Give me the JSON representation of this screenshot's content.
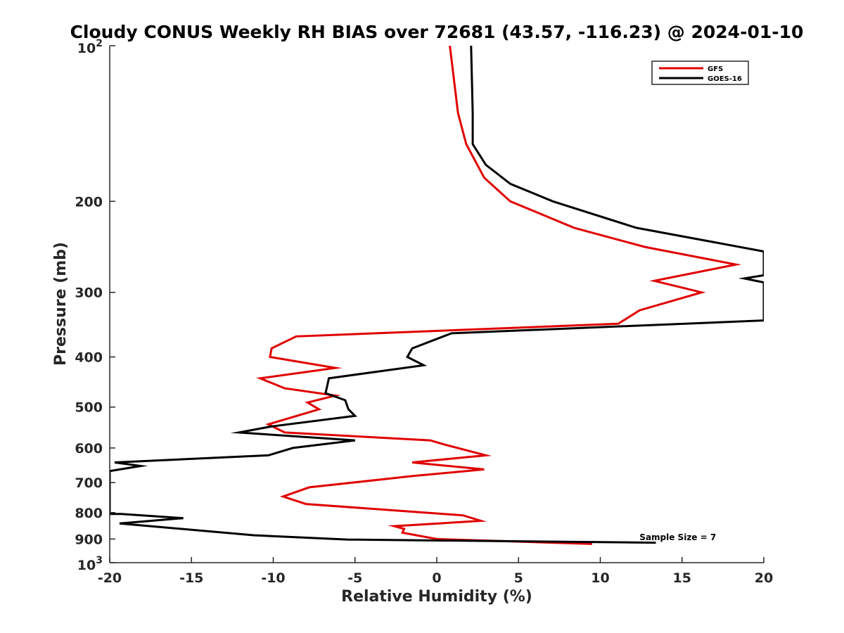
{
  "chart_data": {
    "type": "line",
    "title": "Cloudy CONUS Weekly RH BIAS over 72681 (43.57, -116.23) @ 2024-01-10",
    "xlabel": "Relative Humidity (%)",
    "ylabel": "Pressure (mb)",
    "xlim": [
      -20,
      20
    ],
    "ylim": [
      100,
      1000
    ],
    "y_scale": "log",
    "y_reversed": true,
    "x_ticks": [
      "-20",
      "-15",
      "-10",
      "-5",
      "0",
      "5",
      "10",
      "15",
      "20"
    ],
    "x_tick_values": [
      -20,
      -15,
      -10,
      -5,
      0,
      5,
      10,
      15,
      20
    ],
    "y_ticks": [
      {
        "value": 100,
        "base": "10",
        "exp": "2"
      },
      {
        "value": 200,
        "label": "200"
      },
      {
        "value": 300,
        "label": "300"
      },
      {
        "value": 400,
        "label": "400"
      },
      {
        "value": 500,
        "label": "500"
      },
      {
        "value": 600,
        "label": "600"
      },
      {
        "value": 700,
        "label": "700"
      },
      {
        "value": 800,
        "label": "800"
      },
      {
        "value": 900,
        "label": "900"
      },
      {
        "value": 1000,
        "base": "10",
        "exp": "3"
      }
    ],
    "grid": false,
    "legend_position": "top-right",
    "series": [
      {
        "name": "GFS",
        "color": "#e00000",
        "points": [
          [
            0.8,
            100
          ],
          [
            1.3,
            135
          ],
          [
            1.8,
            155
          ],
          [
            2.9,
            180
          ],
          [
            4.5,
            200
          ],
          [
            8.4,
            225
          ],
          [
            12.7,
            245
          ],
          [
            18.3,
            265
          ],
          [
            13.3,
            285
          ],
          [
            16.2,
            300
          ],
          [
            12.4,
            325
          ],
          [
            11.1,
            345
          ],
          [
            -8.6,
            365
          ],
          [
            -10.1,
            385
          ],
          [
            -10.2,
            400
          ],
          [
            -6.2,
            420
          ],
          [
            -10.8,
            440
          ],
          [
            -9.3,
            460
          ],
          [
            -6.2,
            475
          ],
          [
            -7.9,
            490
          ],
          [
            -7.2,
            505
          ],
          [
            -10.3,
            540
          ],
          [
            -9.3,
            560
          ],
          [
            -0.4,
            580
          ],
          [
            0.4,
            590
          ],
          [
            3.0,
            620
          ],
          [
            -1.5,
            640
          ],
          [
            2.9,
            660
          ],
          [
            -1.5,
            680
          ],
          [
            -7.8,
            715
          ],
          [
            -9.4,
            745
          ],
          [
            -8.0,
            770
          ],
          [
            1.6,
            810
          ],
          [
            2.7,
            830
          ],
          [
            -2.6,
            850
          ],
          [
            -2.0,
            860
          ],
          [
            -2.1,
            875
          ],
          [
            0.0,
            900
          ],
          [
            9.5,
            920
          ]
        ]
      },
      {
        "name": "GOES-16",
        "color": "#000000",
        "points": [
          [
            2.1,
            100
          ],
          [
            2.2,
            135
          ],
          [
            2.2,
            155
          ],
          [
            3.0,
            170
          ],
          [
            4.5,
            185
          ],
          [
            7.1,
            200
          ],
          [
            12.2,
            225
          ],
          [
            20.0,
            250
          ],
          [
            20.0,
            278
          ],
          [
            18.8,
            282
          ],
          [
            20.0,
            287
          ],
          [
            20.0,
            340
          ],
          [
            0.9,
            360
          ],
          [
            -1.5,
            385
          ],
          [
            -1.8,
            400
          ],
          [
            -0.8,
            415
          ],
          [
            -6.6,
            440
          ],
          [
            -6.8,
            470
          ],
          [
            -5.6,
            485
          ],
          [
            -5.4,
            505
          ],
          [
            -5.0,
            520
          ],
          [
            -10.1,
            545
          ],
          [
            -12.1,
            560
          ],
          [
            -5.0,
            580
          ],
          [
            -8.8,
            600
          ],
          [
            -10.3,
            620
          ],
          [
            -19.7,
            640
          ],
          [
            -18.1,
            650
          ],
          [
            -20.0,
            665
          ],
          [
            -20.0,
            805
          ],
          [
            -19.3,
            805
          ],
          [
            -15.5,
            820
          ],
          [
            -19.4,
            840
          ],
          [
            -11.2,
            885
          ],
          [
            -5.5,
            902
          ],
          [
            13.4,
            915
          ]
        ]
      }
    ],
    "annotations": [
      {
        "text": "Sample Size = 7",
        "x": 12.4,
        "y": 905
      }
    ]
  }
}
